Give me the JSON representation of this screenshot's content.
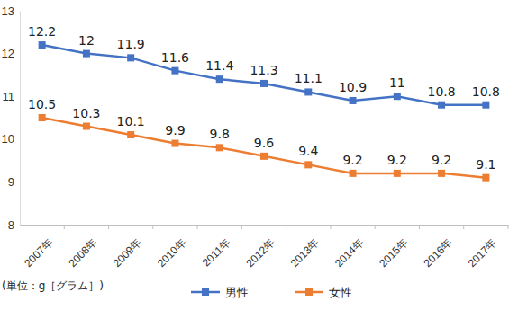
{
  "chart_data": {
    "type": "line",
    "categories": [
      "2007年",
      "2008年",
      "2009年",
      "2010年",
      "2011年",
      "2012年",
      "2013年",
      "2014年",
      "2015年",
      "2016年",
      "2017年"
    ],
    "series": [
      {
        "name": "男性",
        "color": "#4472c4",
        "marker": "square",
        "values": [
          12.2,
          12,
          11.9,
          11.6,
          11.4,
          11.3,
          11.1,
          10.9,
          11,
          10.8,
          10.8
        ]
      },
      {
        "name": "女性",
        "color": "#ed7d31",
        "marker": "square",
        "values": [
          10.5,
          10.3,
          10.1,
          9.9,
          9.8,
          9.6,
          9.4,
          9.2,
          9.2,
          9.2,
          9.1
        ]
      }
    ],
    "ylim": [
      8,
      13
    ],
    "yticks": [
      8,
      9,
      10,
      11,
      12,
      13
    ],
    "grid": false,
    "data_labels": true,
    "legend": "bottom",
    "annotation": "(単位：g［グラム］)"
  }
}
